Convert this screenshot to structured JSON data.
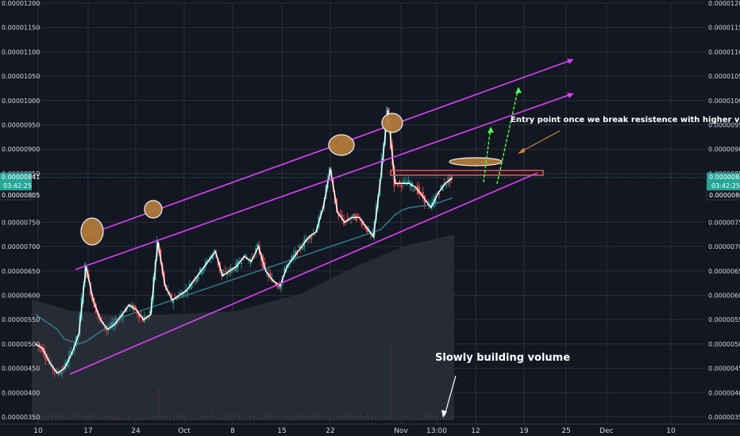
{
  "chart_data": {
    "type": "line",
    "ylim": [
      3.5e-06,
      1.2e-05
    ],
    "y_ticks": [
      "0.00001200",
      "0.00001150",
      "0.00001100",
      "0.00001050",
      "0.00001000",
      "0.00000950",
      "0.00000900",
      "0.00000850",
      "0.00000750",
      "0.00000700",
      "0.00000650",
      "0.00000600",
      "0.00000550",
      "0.00000500",
      "0.00000450",
      "0.00000400",
      "0.00000350"
    ],
    "x_ticks": [
      "10",
      "17",
      "24",
      "Oct",
      "8",
      "15",
      "22",
      "Nov",
      "13:00",
      "12",
      "19",
      "25",
      "Dec",
      "10"
    ],
    "price_tags": {
      "current": "0.00000841",
      "countdown": "03:42:25",
      "support": "0.00000805"
    },
    "series": [
      {
        "values": [
          5.0,
          4.9,
          4.6,
          4.4,
          4.5,
          4.8,
          5.2,
          6.6,
          5.9,
          5.5,
          5.3,
          5.4,
          5.6,
          5.8,
          5.7,
          5.5,
          5.6,
          7.1,
          6.2,
          5.9,
          6.0,
          6.1,
          6.3,
          6.5,
          6.7,
          6.9,
          6.4,
          6.5,
          6.6,
          6.8,
          6.7,
          7.0,
          6.5,
          6.3,
          6.2,
          6.6,
          6.8,
          7.0,
          7.2,
          7.3,
          7.8,
          8.6,
          7.7,
          7.5,
          7.6,
          7.6,
          7.4,
          7.2,
          8.4,
          9.8,
          8.3,
          8.3,
          8.3,
          8.2,
          8.0,
          7.8,
          8.1,
          8.3,
          8.41
        ]
      },
      {
        "values": [
          5.6,
          5.5,
          5.4,
          5.3,
          5.1,
          5.05,
          5.0,
          5.05,
          5.15,
          5.25,
          5.35,
          5.45,
          5.55,
          5.6,
          5.65,
          5.7,
          5.75,
          5.8,
          5.85,
          5.9,
          5.95,
          6.0,
          6.05,
          6.1,
          6.15,
          6.2,
          6.25,
          6.3,
          6.35,
          6.4,
          6.45,
          6.5,
          6.55,
          6.6,
          6.65,
          6.7,
          6.75,
          6.8,
          6.85,
          6.9,
          6.95,
          7.0,
          7.05,
          7.1,
          7.15,
          7.2,
          7.25,
          7.3,
          7.35,
          7.5,
          7.65,
          7.75,
          7.8,
          7.82,
          7.84,
          7.86,
          7.9,
          7.95,
          8.0
        ]
      }
    ],
    "annotations": [
      "Entry point  once we break resistence with higher volume",
      "Slowly building volume"
    ]
  }
}
